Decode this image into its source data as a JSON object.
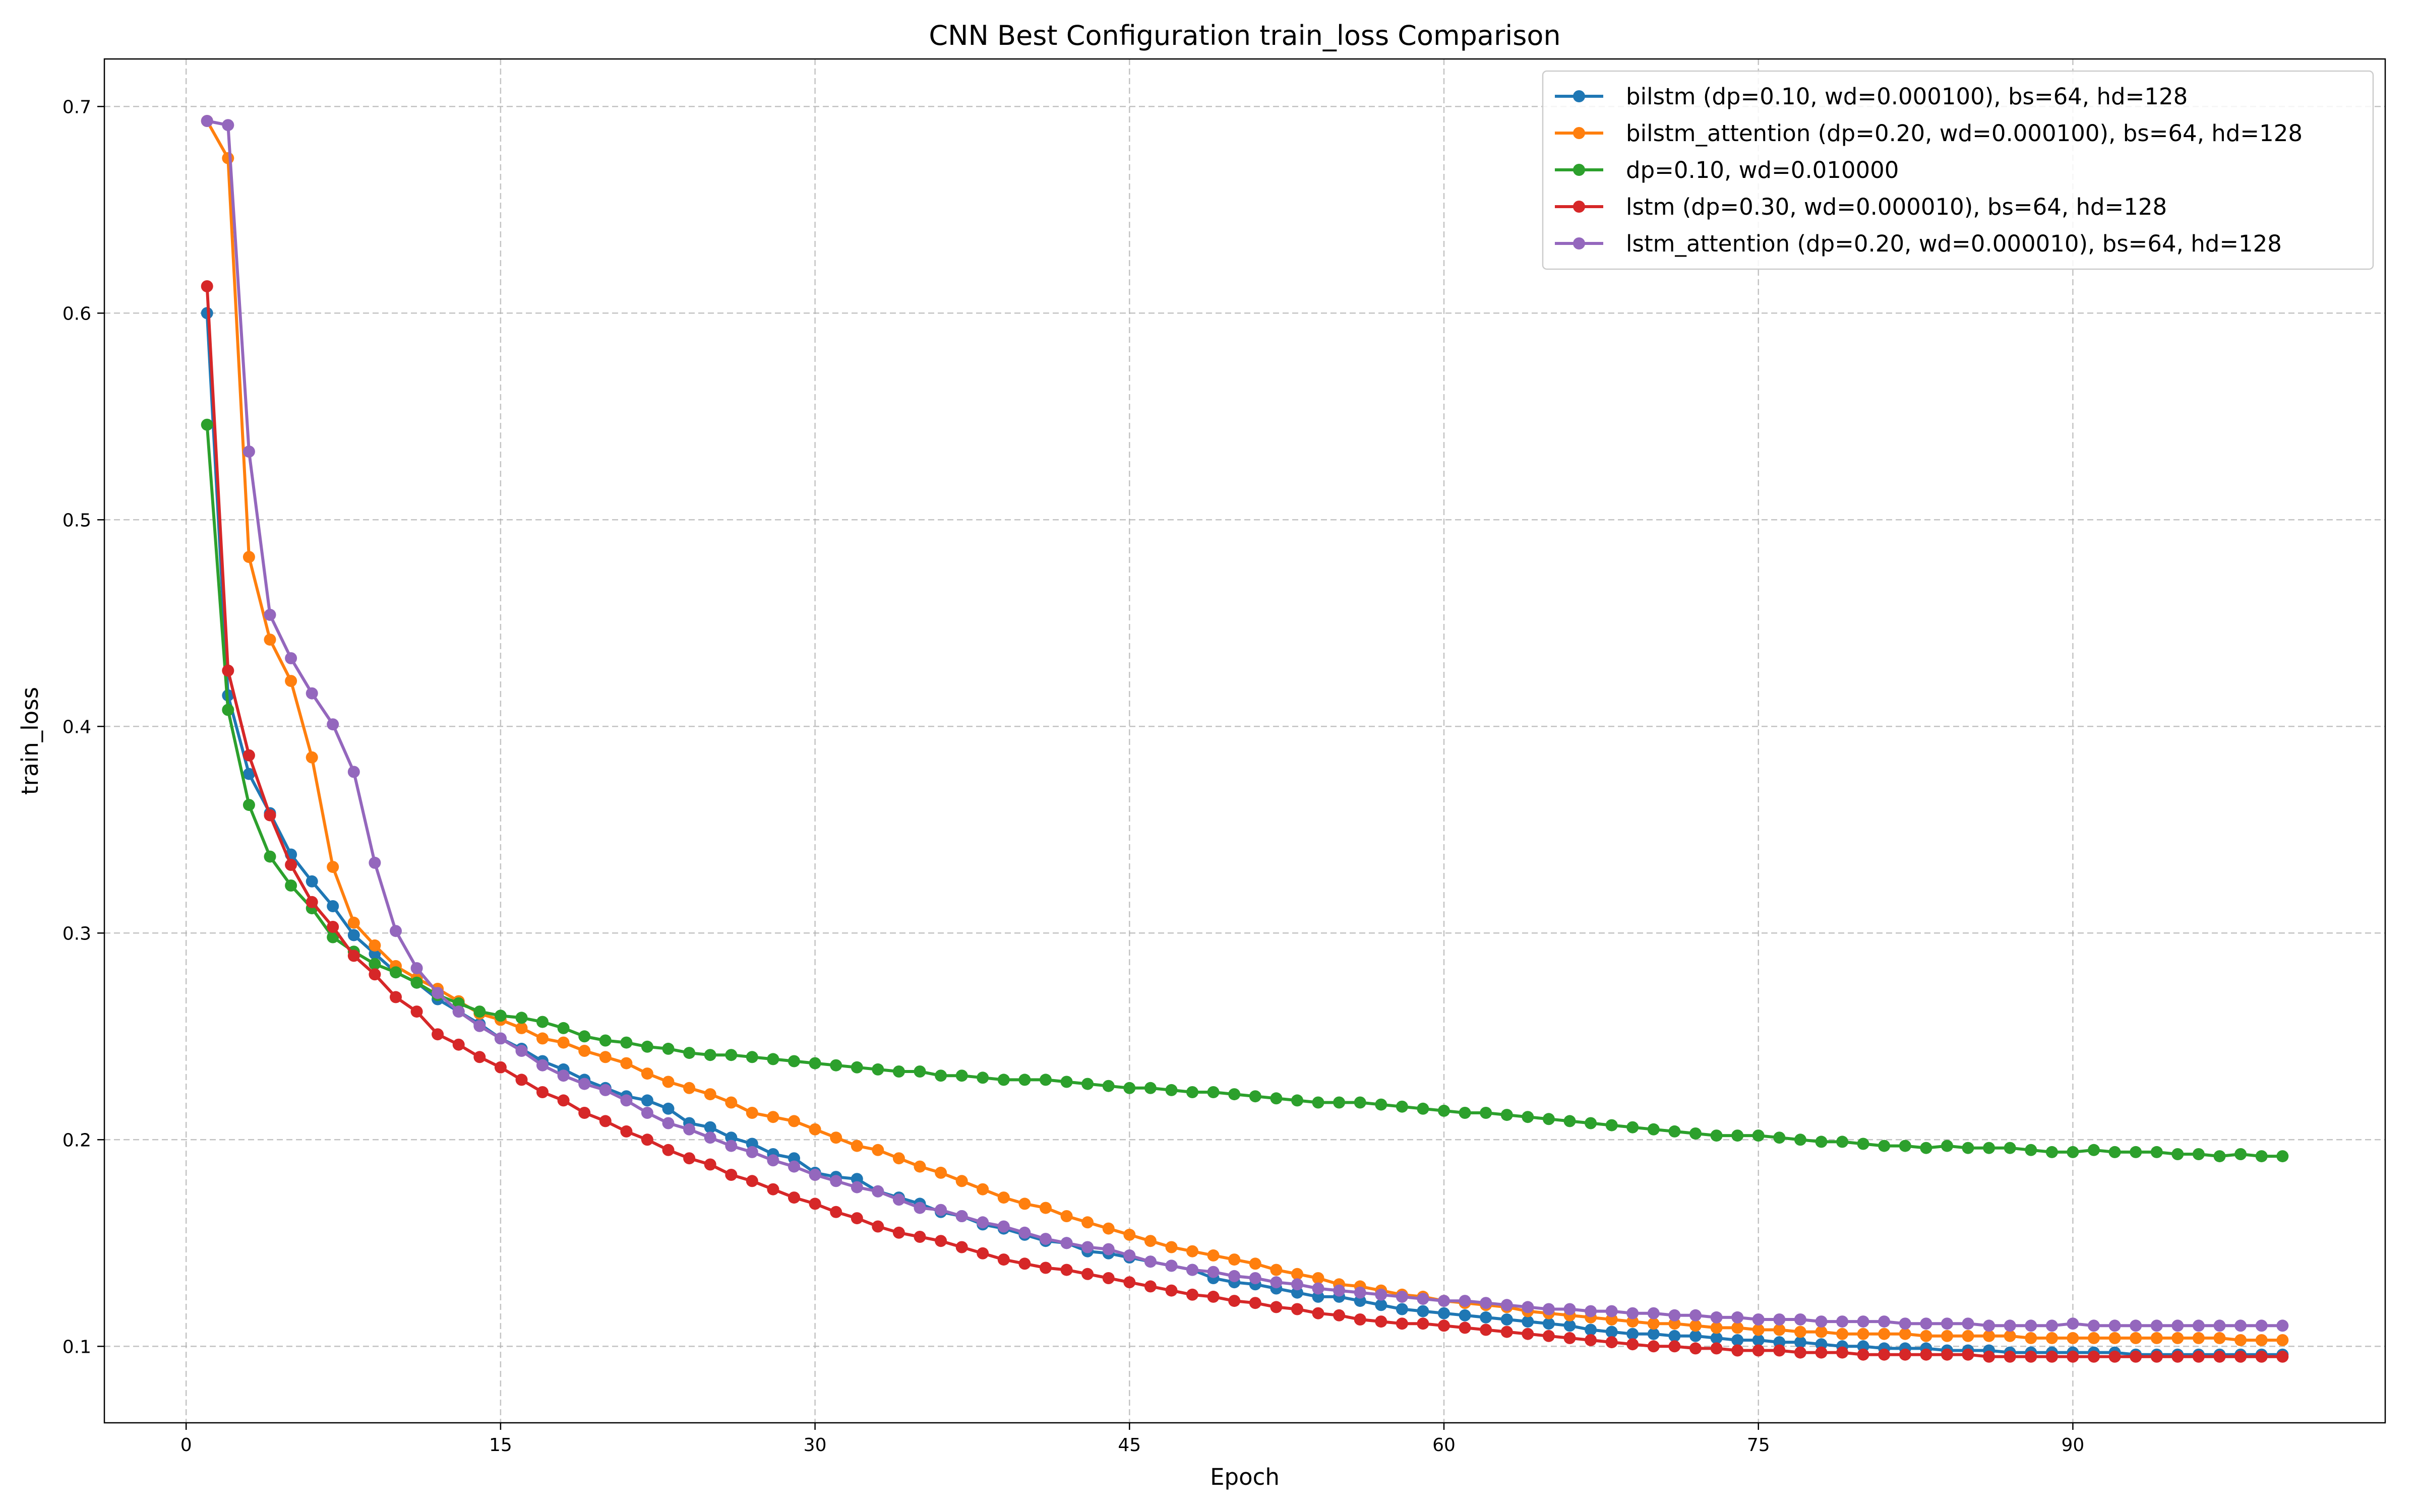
{
  "chart_data": {
    "type": "line",
    "title": "CNN Best Configuration train_loss Comparison",
    "xlabel": "Epoch",
    "ylabel": "train_loss",
    "xlim": [
      -3.9,
      104.9
    ],
    "ylim": [
      0.063,
      0.723
    ],
    "xticks": [
      0,
      15,
      30,
      45,
      60,
      75,
      90
    ],
    "yticks": [
      0.1,
      0.2,
      0.3,
      0.4,
      0.5,
      0.6,
      0.7
    ],
    "xtick_labels": [
      "0",
      "15",
      "30",
      "45",
      "60",
      "75",
      "90"
    ],
    "ytick_labels": [
      "0.1",
      "0.2",
      "0.3",
      "0.4",
      "0.5",
      "0.6",
      "0.7"
    ],
    "grid": true,
    "legend_position": "top-right",
    "x": [
      1,
      2,
      3,
      4,
      5,
      6,
      7,
      8,
      9,
      10,
      11,
      12,
      13,
      14,
      15,
      16,
      17,
      18,
      19,
      20,
      21,
      22,
      23,
      24,
      25,
      26,
      27,
      28,
      29,
      30,
      31,
      32,
      33,
      34,
      35,
      36,
      37,
      38,
      39,
      40,
      41,
      42,
      43,
      44,
      45,
      46,
      47,
      48,
      49,
      50,
      51,
      52,
      53,
      54,
      55,
      56,
      57,
      58,
      59,
      60,
      61,
      62,
      63,
      64,
      65,
      66,
      67,
      68,
      69,
      70,
      71,
      72,
      73,
      74,
      75,
      76,
      77,
      78,
      79,
      80,
      81,
      82,
      83,
      84,
      85,
      86,
      87,
      88,
      89,
      90,
      91,
      92,
      93,
      94,
      95,
      96,
      97,
      98,
      99,
      100
    ],
    "series": [
      {
        "name": "bilstm (dp=0.10, wd=0.000100), bs=64, hd=128",
        "color": "#1f77b4",
        "values": [
          0.6,
          0.415,
          0.377,
          0.358,
          0.338,
          0.325,
          0.313,
          0.299,
          0.29,
          0.281,
          0.276,
          0.268,
          0.262,
          0.256,
          0.249,
          0.244,
          0.238,
          0.234,
          0.229,
          0.225,
          0.221,
          0.219,
          0.215,
          0.208,
          0.206,
          0.201,
          0.198,
          0.193,
          0.191,
          0.184,
          0.182,
          0.181,
          0.175,
          0.172,
          0.169,
          0.165,
          0.163,
          0.159,
          0.157,
          0.154,
          0.151,
          0.15,
          0.146,
          0.145,
          0.143,
          0.141,
          0.139,
          0.137,
          0.133,
          0.131,
          0.13,
          0.128,
          0.126,
          0.124,
          0.124,
          0.122,
          0.12,
          0.118,
          0.117,
          0.116,
          0.115,
          0.114,
          0.113,
          0.112,
          0.111,
          0.11,
          0.108,
          0.107,
          0.106,
          0.106,
          0.105,
          0.105,
          0.104,
          0.103,
          0.103,
          0.102,
          0.102,
          0.101,
          0.1,
          0.1,
          0.099,
          0.099,
          0.099,
          0.098,
          0.098,
          0.098,
          0.097,
          0.097,
          0.097,
          0.097,
          0.097,
          0.097,
          0.096,
          0.096,
          0.096,
          0.096,
          0.096,
          0.096,
          0.096,
          0.096
        ]
      },
      {
        "name": "bilstm_attention (dp=0.20, wd=0.000100), bs=64, hd=128",
        "color": "#ff7f0e",
        "values": [
          0.693,
          0.675,
          0.482,
          0.442,
          0.422,
          0.385,
          0.332,
          0.305,
          0.294,
          0.284,
          0.278,
          0.273,
          0.267,
          0.261,
          0.258,
          0.254,
          0.249,
          0.247,
          0.243,
          0.24,
          0.237,
          0.232,
          0.228,
          0.225,
          0.222,
          0.218,
          0.213,
          0.211,
          0.209,
          0.205,
          0.201,
          0.197,
          0.195,
          0.191,
          0.187,
          0.184,
          0.18,
          0.176,
          0.172,
          0.169,
          0.167,
          0.163,
          0.16,
          0.157,
          0.154,
          0.151,
          0.148,
          0.146,
          0.144,
          0.142,
          0.14,
          0.137,
          0.135,
          0.133,
          0.13,
          0.129,
          0.127,
          0.125,
          0.124,
          0.122,
          0.121,
          0.12,
          0.119,
          0.117,
          0.116,
          0.115,
          0.114,
          0.113,
          0.112,
          0.111,
          0.111,
          0.11,
          0.109,
          0.109,
          0.108,
          0.108,
          0.107,
          0.107,
          0.106,
          0.106,
          0.106,
          0.106,
          0.105,
          0.105,
          0.105,
          0.105,
          0.105,
          0.104,
          0.104,
          0.104,
          0.104,
          0.104,
          0.104,
          0.104,
          0.104,
          0.104,
          0.104,
          0.103,
          0.103,
          0.103
        ]
      },
      {
        "name": "dp=0.10, wd=0.010000",
        "color": "#2ca02c",
        "values": [
          0.546,
          0.408,
          0.362,
          0.337,
          0.323,
          0.312,
          0.298,
          0.291,
          0.285,
          0.281,
          0.276,
          0.27,
          0.266,
          0.262,
          0.26,
          0.259,
          0.257,
          0.254,
          0.25,
          0.248,
          0.247,
          0.245,
          0.244,
          0.242,
          0.241,
          0.241,
          0.24,
          0.239,
          0.238,
          0.237,
          0.236,
          0.235,
          0.234,
          0.233,
          0.233,
          0.231,
          0.231,
          0.23,
          0.229,
          0.229,
          0.229,
          0.228,
          0.227,
          0.226,
          0.225,
          0.225,
          0.224,
          0.223,
          0.223,
          0.222,
          0.221,
          0.22,
          0.219,
          0.218,
          0.218,
          0.218,
          0.217,
          0.216,
          0.215,
          0.214,
          0.213,
          0.213,
          0.212,
          0.211,
          0.21,
          0.209,
          0.208,
          0.207,
          0.206,
          0.205,
          0.204,
          0.203,
          0.202,
          0.202,
          0.202,
          0.201,
          0.2,
          0.199,
          0.199,
          0.198,
          0.197,
          0.197,
          0.196,
          0.197,
          0.196,
          0.196,
          0.196,
          0.195,
          0.194,
          0.194,
          0.195,
          0.194,
          0.194,
          0.194,
          0.193,
          0.193,
          0.192,
          0.193,
          0.192,
          0.192
        ]
      },
      {
        "name": "lstm (dp=0.30, wd=0.000010), bs=64, hd=128",
        "color": "#d62728",
        "values": [
          0.613,
          0.427,
          0.386,
          0.357,
          0.333,
          0.315,
          0.303,
          0.289,
          0.28,
          0.269,
          0.262,
          0.251,
          0.246,
          0.24,
          0.235,
          0.229,
          0.223,
          0.219,
          0.213,
          0.209,
          0.204,
          0.2,
          0.195,
          0.191,
          0.188,
          0.183,
          0.18,
          0.176,
          0.172,
          0.169,
          0.165,
          0.162,
          0.158,
          0.155,
          0.153,
          0.151,
          0.148,
          0.145,
          0.142,
          0.14,
          0.138,
          0.137,
          0.135,
          0.133,
          0.131,
          0.129,
          0.127,
          0.125,
          0.124,
          0.122,
          0.121,
          0.119,
          0.118,
          0.116,
          0.115,
          0.113,
          0.112,
          0.111,
          0.111,
          0.11,
          0.109,
          0.108,
          0.107,
          0.106,
          0.105,
          0.104,
          0.103,
          0.102,
          0.101,
          0.1,
          0.1,
          0.099,
          0.099,
          0.098,
          0.098,
          0.098,
          0.097,
          0.097,
          0.097,
          0.096,
          0.096,
          0.096,
          0.096,
          0.096,
          0.096,
          0.095,
          0.095,
          0.095,
          0.095,
          0.095,
          0.095,
          0.095,
          0.095,
          0.095,
          0.095,
          0.095,
          0.095,
          0.095,
          0.095,
          0.095
        ]
      },
      {
        "name": "lstm_attention (dp=0.20, wd=0.000010), bs=64, hd=128",
        "color": "#9467bd",
        "values": [
          0.693,
          0.691,
          0.533,
          0.454,
          0.433,
          0.416,
          0.401,
          0.378,
          0.334,
          0.301,
          0.283,
          0.271,
          0.262,
          0.255,
          0.249,
          0.243,
          0.236,
          0.231,
          0.227,
          0.224,
          0.219,
          0.213,
          0.208,
          0.205,
          0.201,
          0.197,
          0.194,
          0.19,
          0.187,
          0.183,
          0.18,
          0.177,
          0.175,
          0.171,
          0.167,
          0.166,
          0.163,
          0.16,
          0.158,
          0.155,
          0.152,
          0.15,
          0.148,
          0.147,
          0.144,
          0.141,
          0.139,
          0.137,
          0.136,
          0.134,
          0.133,
          0.131,
          0.13,
          0.128,
          0.127,
          0.126,
          0.125,
          0.124,
          0.123,
          0.122,
          0.122,
          0.121,
          0.12,
          0.119,
          0.118,
          0.118,
          0.117,
          0.117,
          0.116,
          0.116,
          0.115,
          0.115,
          0.114,
          0.114,
          0.113,
          0.113,
          0.113,
          0.112,
          0.112,
          0.112,
          0.112,
          0.111,
          0.111,
          0.111,
          0.111,
          0.11,
          0.11,
          0.11,
          0.11,
          0.111,
          0.11,
          0.11,
          0.11,
          0.11,
          0.11,
          0.11,
          0.11,
          0.11,
          0.11,
          0.11
        ]
      }
    ]
  }
}
